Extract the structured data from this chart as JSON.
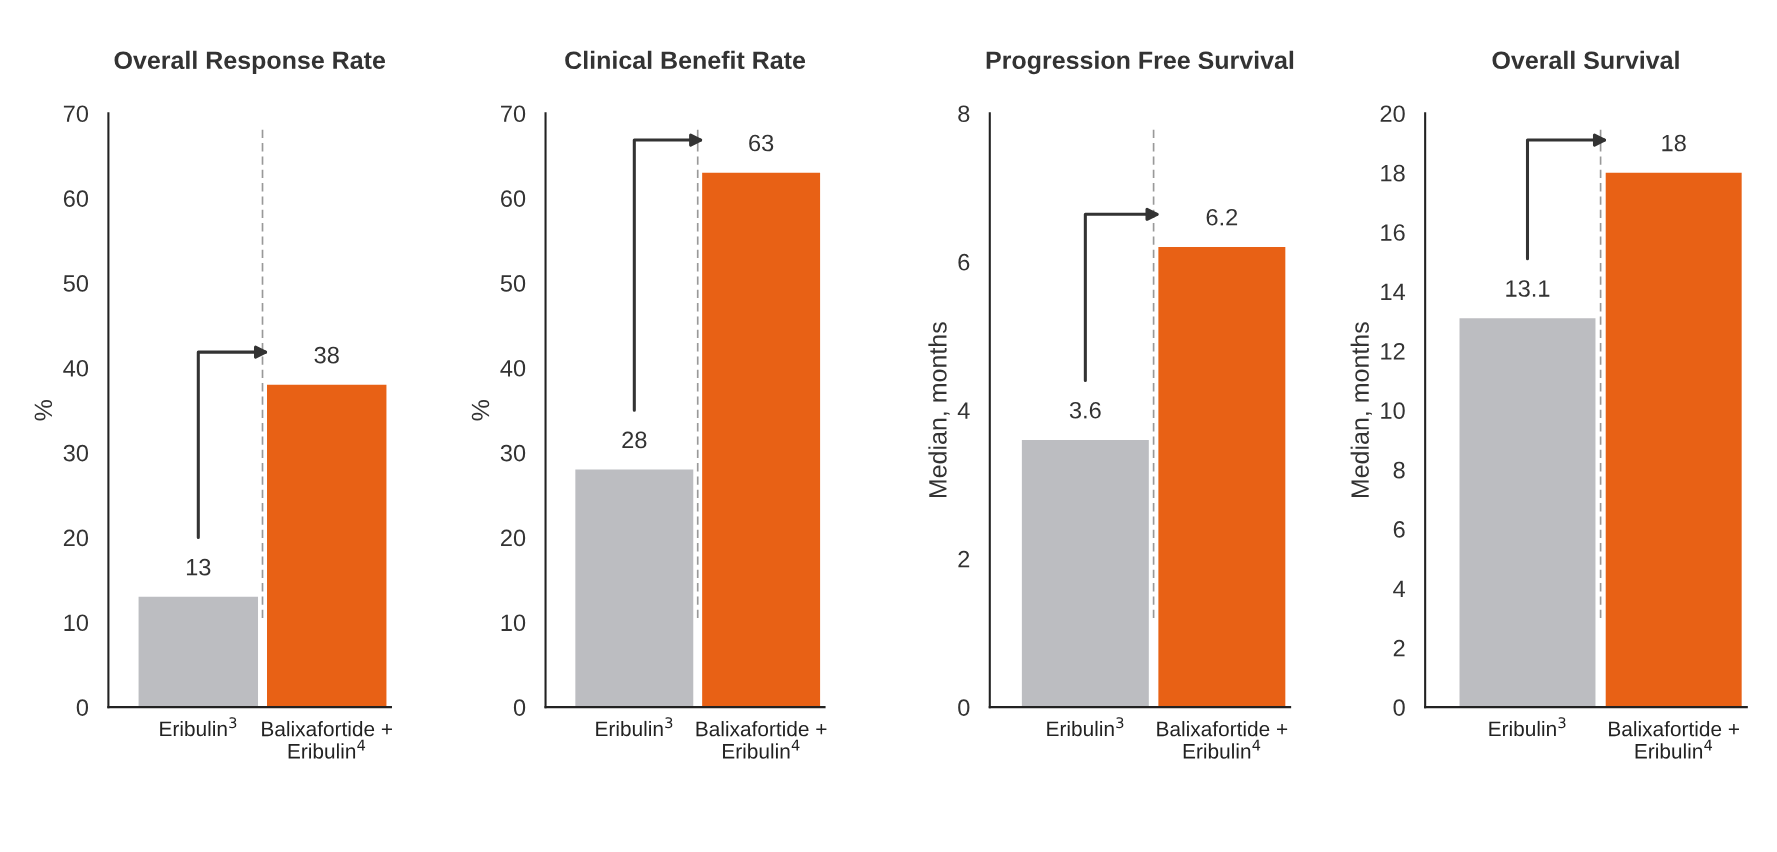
{
  "chart_data": [
    {
      "type": "bar",
      "title": "Overall Response Rate",
      "ylabel": "%",
      "categories": [
        "Eribulin$^{3}$",
        "Balixafortide +\nEribulin$^{4}$"
      ],
      "values": [
        13,
        38
      ],
      "colors": [
        "#bcbdc1",
        "#e86115"
      ],
      "ylim": [
        0,
        70
      ],
      "yticks": [
        0,
        10,
        20,
        30,
        40,
        50,
        60,
        70
      ],
      "data_labels": true,
      "grid": false,
      "legend": false
    },
    {
      "type": "bar",
      "title": "Clinical Benefit Rate",
      "ylabel": "%",
      "categories": [
        "Eribulin$^{3}$",
        "Balixafortide +\nEribulin$^{4}$"
      ],
      "values": [
        28,
        63
      ],
      "colors": [
        "#bcbdc1",
        "#e86115"
      ],
      "ylim": [
        0,
        70
      ],
      "yticks": [
        0,
        10,
        20,
        30,
        40,
        50,
        60,
        70
      ],
      "data_labels": true,
      "grid": false,
      "legend": false
    },
    {
      "type": "bar",
      "title": "Progression Free Survival",
      "ylabel": "Median, months",
      "categories": [
        "Eribulin$^{3}$",
        "Balixafortide +\nEribulin$^{4}$"
      ],
      "values": [
        3.6,
        6.2
      ],
      "colors": [
        "#bcbdc1",
        "#e86115"
      ],
      "ylim": [
        0,
        8
      ],
      "yticks": [
        0,
        2,
        4,
        6,
        8
      ],
      "data_labels": true,
      "grid": false,
      "legend": false
    },
    {
      "type": "bar",
      "title": "Overall Survival",
      "ylabel": "Median, months",
      "categories": [
        "Eribulin$^{3}$",
        "Balixafortide +\nEribulin$^{4}$"
      ],
      "values": [
        13.1,
        18
      ],
      "colors": [
        "#bcbdc1",
        "#e86115"
      ],
      "ylim": [
        0,
        20
      ],
      "yticks": [
        0,
        2,
        4,
        6,
        8,
        10,
        12,
        14,
        16,
        18,
        20
      ],
      "data_labels": true,
      "grid": false,
      "legend": false
    }
  ]
}
